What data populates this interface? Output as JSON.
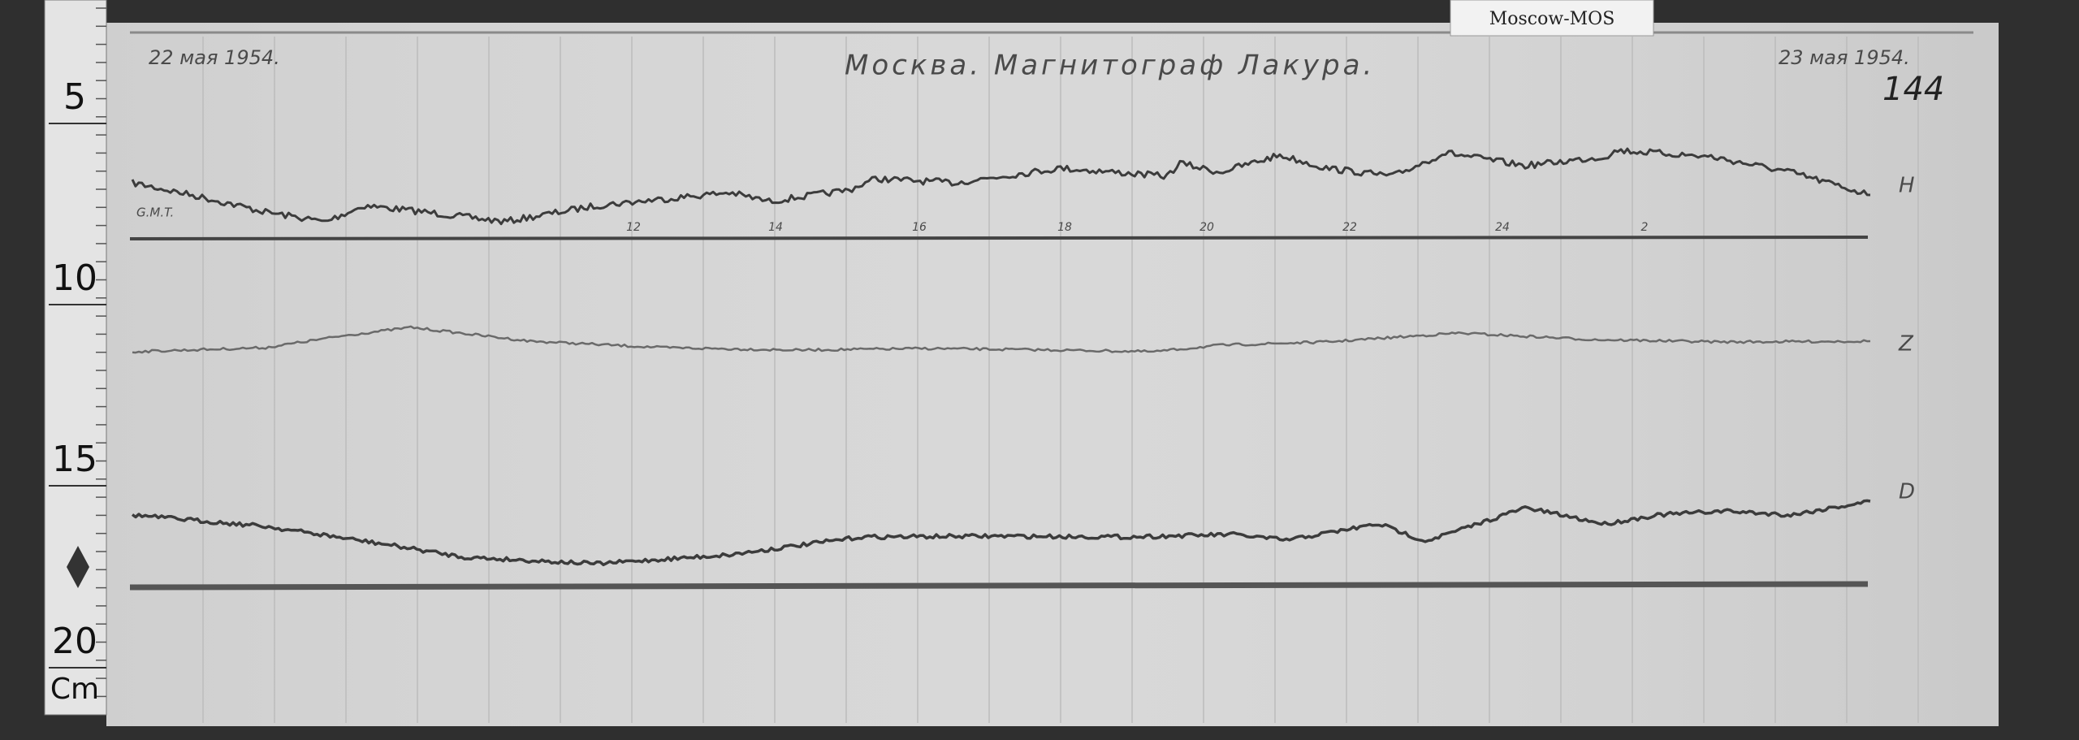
{
  "label": {
    "text": "Moscow-MOS"
  },
  "header": {
    "start_date": "22 мая 1954.",
    "title": "Москва. Магнитограф Лакура.",
    "end_date": "23 мая 1954.",
    "sheet_number": "144"
  },
  "ruler": {
    "marks": [
      "5",
      "10",
      "15",
      "20"
    ],
    "unit": "Cm"
  },
  "traces": [
    {
      "label": "H"
    },
    {
      "label": "Z"
    },
    {
      "label": "D"
    }
  ],
  "time_axis": {
    "label": "G.M.T.",
    "hours": [
      "12",
      "14",
      "16",
      "18",
      "20",
      "22",
      "24",
      "2"
    ]
  }
}
